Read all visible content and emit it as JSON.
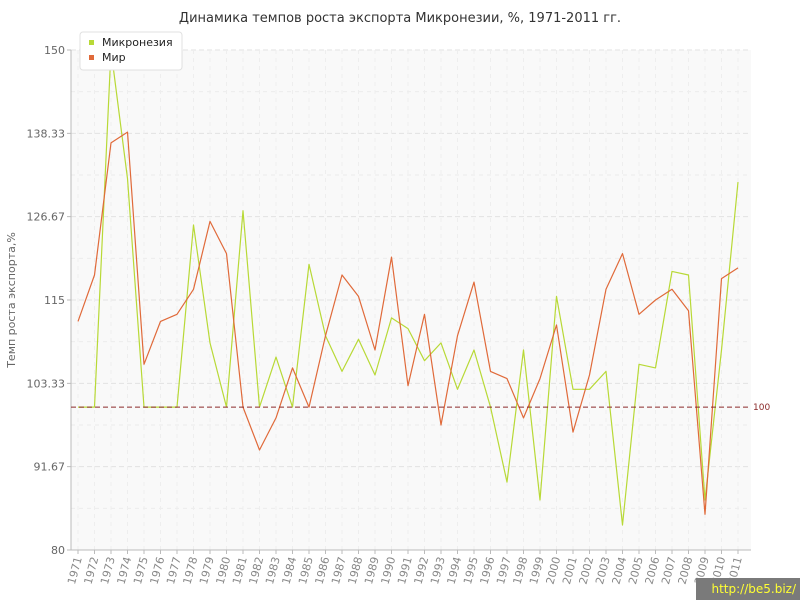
{
  "chart_data": {
    "type": "line",
    "title": "Динамика темпов роста экспорта Микронезии, %, 1971-2011 гг.",
    "ylabel": "Темп роста экспорта,%",
    "xlabel": "",
    "ylim": [
      80,
      150
    ],
    "yticks": [
      "80",
      "91.67",
      "103.33",
      "115",
      "126.67",
      "138.33",
      "150"
    ],
    "grid": true,
    "legend_position": "top-left",
    "categories": [
      "1971",
      "1972",
      "1973",
      "1974",
      "1975",
      "1976",
      "1977",
      "1978",
      "1979",
      "1980",
      "1981",
      "1982",
      "1983",
      "1984",
      "1985",
      "1986",
      "1987",
      "1988",
      "1989",
      "1990",
      "1991",
      "1992",
      "1993",
      "1994",
      "1995",
      "1996",
      "1997",
      "1998",
      "1999",
      "2000",
      "2001",
      "2002",
      "2003",
      "2004",
      "2005",
      "2006",
      "2007",
      "2008",
      "2009",
      "2010",
      "2011"
    ],
    "series": [
      {
        "name": "Микронезия",
        "color": "#b8d936",
        "values": [
          100,
          100,
          150,
          132,
          100,
          100,
          100,
          125.5,
          109,
          100,
          127.5,
          100,
          107,
          100,
          120,
          110,
          105,
          109.5,
          104.5,
          112.5,
          111,
          106.5,
          109,
          102.5,
          108,
          100,
          89.5,
          108,
          87,
          115.5,
          102.5,
          102.5,
          105,
          83.5,
          106,
          105.5,
          119,
          118.5,
          87,
          108,
          131.5
        ]
      },
      {
        "name": "Мир",
        "color": "#e06a3a",
        "values": [
          112,
          118.5,
          137,
          138.5,
          106,
          112,
          113,
          116.5,
          126,
          121.5,
          100,
          94,
          98.5,
          105.5,
          100,
          110,
          118.5,
          115.5,
          108,
          121,
          103,
          113,
          97.5,
          110,
          117.5,
          105,
          104,
          98.5,
          104,
          111.5,
          96.5,
          104.5,
          116.5,
          121.5,
          113,
          115,
          116.5,
          113.5,
          85,
          118,
          119.5
        ]
      }
    ],
    "reference_line": {
      "value": 100,
      "label": "100",
      "color": "#8b2a2a"
    }
  },
  "watermark": "http://be5.biz/"
}
